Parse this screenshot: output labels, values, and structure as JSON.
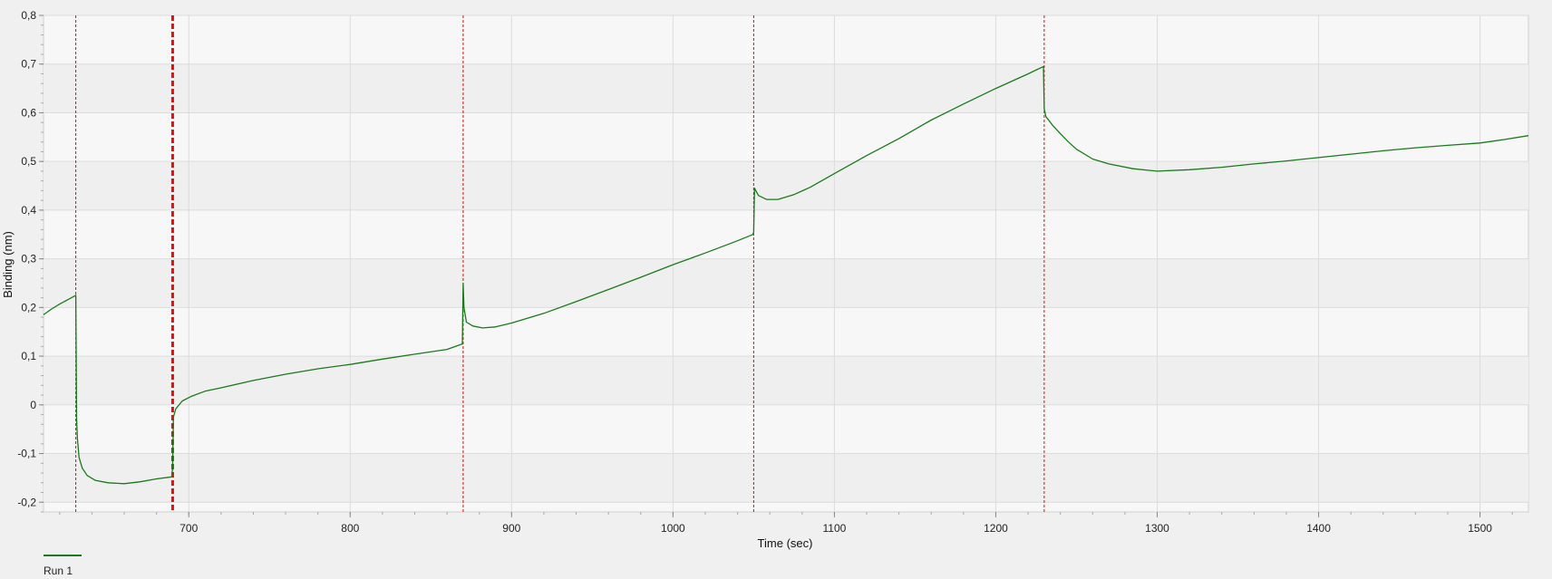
{
  "chart_data": {
    "type": "line",
    "title": "",
    "xlabel": "Time (sec)",
    "ylabel": "Binding (nm)",
    "xlim": [
      610,
      1530
    ],
    "ylim": [
      -0.22,
      0.8
    ],
    "x_ticks": [
      700,
      800,
      900,
      1000,
      1100,
      1200,
      1300,
      1400,
      1500
    ],
    "x_tick_labels": [
      "700",
      "800",
      "900",
      "1000",
      "1100",
      "1200",
      "1300",
      "1400",
      "1500"
    ],
    "y_ticks": [
      0.8,
      0.7,
      0.6,
      0.5,
      0.4,
      0.3,
      0.2,
      0.1,
      0,
      -0.1,
      -0.2
    ],
    "y_tick_labels": [
      "0,8",
      "0,7",
      "0,6",
      "0,5",
      "0,4",
      "0,3",
      "0,2",
      "0,1",
      "0",
      "-0,1",
      "-0,2"
    ],
    "grid": true,
    "legend_position": "bottom-left",
    "step_markers": [
      {
        "x": 630,
        "style": "thin"
      },
      {
        "x": 690,
        "style": "thick"
      },
      {
        "x": 870,
        "style": "thin"
      },
      {
        "x": 1050,
        "style": "thin"
      },
      {
        "x": 1230,
        "style": "thin"
      }
    ],
    "series": [
      {
        "name": "Run 1",
        "color": "#1a7a1a",
        "x": [
          610,
          615,
          620,
          625,
          630,
          630.5,
          631,
          632,
          634,
          637,
          642,
          650,
          660,
          670,
          680,
          689.5,
          690,
          690.5,
          692,
          696,
          702,
          710,
          720,
          740,
          760,
          780,
          800,
          820,
          840,
          860,
          869.5,
          870,
          870.5,
          872,
          876,
          882,
          890,
          900,
          920,
          940,
          960,
          980,
          1000,
          1020,
          1040,
          1049.5,
          1050,
          1050.5,
          1053,
          1058,
          1065,
          1075,
          1085,
          1100,
          1120,
          1140,
          1160,
          1180,
          1200,
          1220,
          1229.5,
          1230,
          1231,
          1235,
          1240,
          1245,
          1250,
          1260,
          1270,
          1285,
          1300,
          1320,
          1340,
          1360,
          1380,
          1400,
          1420,
          1440,
          1460,
          1480,
          1500,
          1515,
          1530
        ],
        "y": [
          0.185,
          0.197,
          0.207,
          0.216,
          0.225,
          -0.03,
          -0.07,
          -0.108,
          -0.13,
          -0.145,
          -0.155,
          -0.16,
          -0.162,
          -0.158,
          -0.152,
          -0.148,
          -0.13,
          -0.025,
          -0.008,
          0.008,
          0.018,
          0.028,
          0.035,
          0.05,
          0.063,
          0.074,
          0.083,
          0.094,
          0.104,
          0.114,
          0.125,
          0.25,
          0.2,
          0.17,
          0.162,
          0.158,
          0.16,
          0.168,
          0.188,
          0.212,
          0.237,
          0.262,
          0.288,
          0.312,
          0.337,
          0.35,
          0.355,
          0.445,
          0.43,
          0.422,
          0.422,
          0.432,
          0.447,
          0.475,
          0.512,
          0.547,
          0.585,
          0.618,
          0.65,
          0.68,
          0.695,
          0.608,
          0.592,
          0.575,
          0.557,
          0.54,
          0.525,
          0.505,
          0.495,
          0.485,
          0.48,
          0.483,
          0.488,
          0.495,
          0.501,
          0.508,
          0.515,
          0.522,
          0.528,
          0.533,
          0.538,
          0.545,
          0.553
        ]
      }
    ]
  },
  "legend": {
    "items": [
      {
        "label": "Run 1",
        "color": "#1a7a1a"
      }
    ]
  }
}
